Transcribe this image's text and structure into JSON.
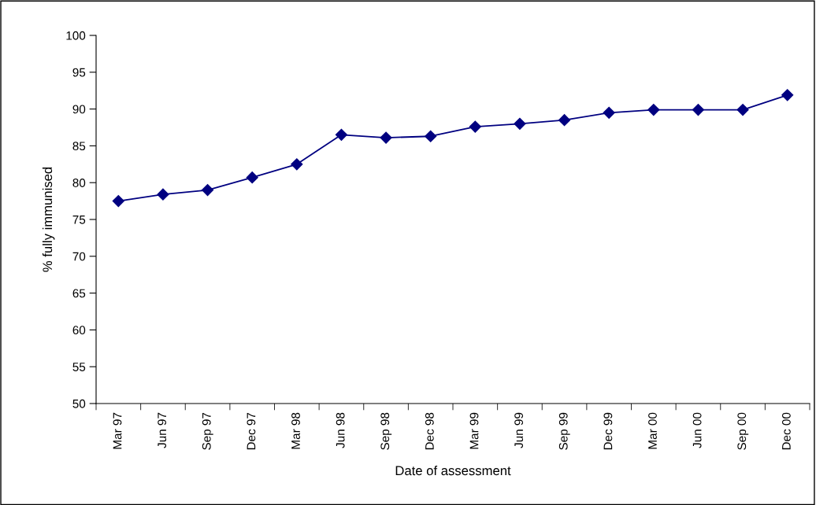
{
  "chart_data": {
    "type": "line",
    "xlabel": "Date of assessment",
    "ylabel": "% fully immunised",
    "categories": [
      "Mar 97",
      "Jun 97",
      "Sep 97",
      "Dec 97",
      "Mar 98",
      "Jun 98",
      "Sep 98",
      "Dec 98",
      "Mar 99",
      "Jun 99",
      "Sep 99",
      "Dec 99",
      "Mar 00",
      "Jun 00",
      "Sep 00",
      "Dec 00"
    ],
    "series": [
      {
        "color": "#000080",
        "values": [
          77.5,
          78.4,
          79.0,
          80.7,
          82.5,
          86.5,
          86.1,
          86.3,
          87.6,
          88.0,
          88.5,
          89.5,
          89.9,
          89.9,
          89.9,
          91.9
        ]
      }
    ],
    "ylim": [
      50,
      100
    ],
    "yticks": [
      50,
      55,
      60,
      65,
      70,
      75,
      80,
      85,
      90,
      95,
      100
    ],
    "grid": false,
    "legend": false,
    "marker": "diamond",
    "line_style": "solid"
  }
}
